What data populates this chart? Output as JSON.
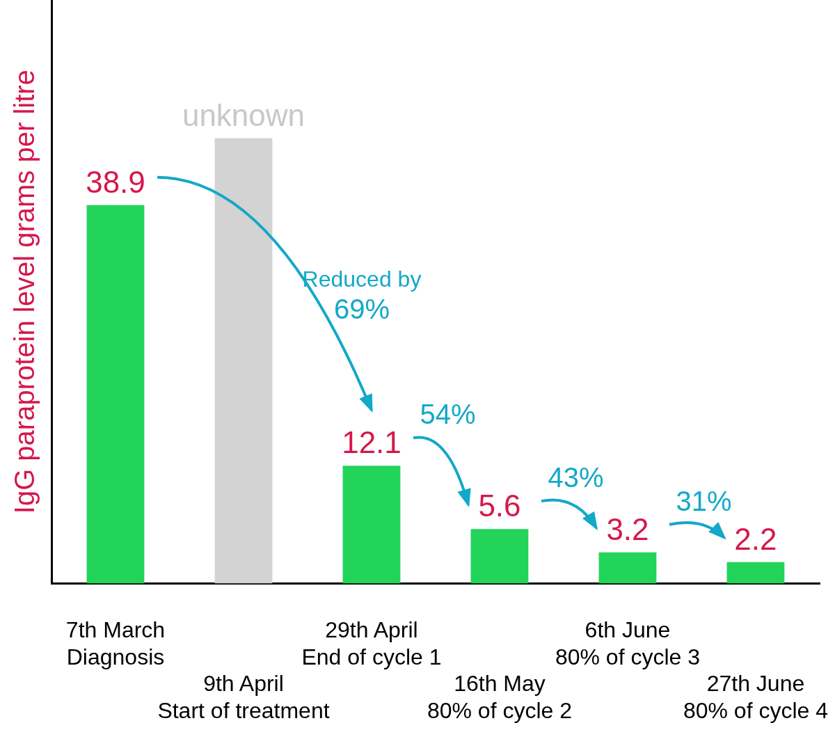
{
  "chart_data": {
    "type": "bar",
    "ylabel": "IgG paraprotein level grams per litre",
    "categories": [
      "7th March\nDiagnosis",
      "9th April\nStart of treatment",
      "29th April\nEnd of cycle 1",
      "16th May\n80% of cycle 2",
      "6th June\n80% of cycle 3",
      "27th June\n80% of cycle 4"
    ],
    "values": [
      38.9,
      45.8,
      12.1,
      5.6,
      3.2,
      2.2
    ],
    "colors": [
      "#22d45a",
      "#d3d3d3",
      "#22d45a",
      "#22d45a",
      "#22d45a",
      "#22d45a"
    ],
    "value_labels": [
      "38.9",
      "unknown",
      "12.1",
      "5.6",
      "3.2",
      "2.2"
    ],
    "ylim": [
      0,
      60
    ],
    "tick_labels": "x",
    "grid": false,
    "legend": false,
    "annotations": [
      "Reduced by\n69%",
      "54%",
      "43%",
      "31%"
    ]
  }
}
